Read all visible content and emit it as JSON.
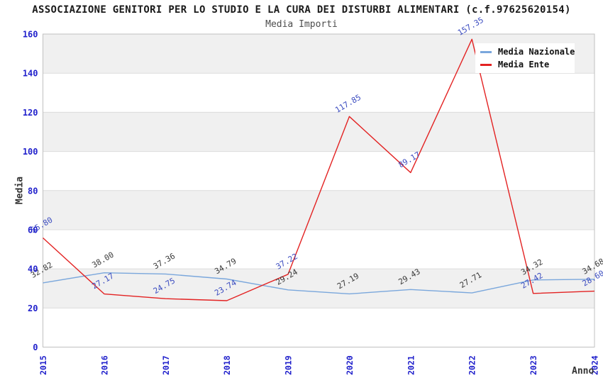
{
  "chart_data": {
    "type": "line",
    "title": "ASSOCIAZIONE GENITORI PER LO STUDIO E LA CURA DEI DISTURBI ALIMENTARI (c.f.97625620154)",
    "subtitle": "Media Importi",
    "xlabel": "Anno",
    "ylabel": "Media",
    "x": [
      "2015",
      "2016",
      "2017",
      "2018",
      "2019",
      "2020",
      "2021",
      "2022",
      "2023",
      "2024"
    ],
    "series": [
      {
        "name": "Media Nazionale",
        "color": "#7aa7dc",
        "label_color": "#3a3a3a",
        "values": [
          32.82,
          38.0,
          37.36,
          34.79,
          29.24,
          27.19,
          29.43,
          27.71,
          34.32,
          34.68
        ]
      },
      {
        "name": "Media Ente",
        "color": "#e32222",
        "label_color": "#3b4cc0",
        "values": [
          55.8,
          27.17,
          24.75,
          23.74,
          37.22,
          117.85,
          89.17,
          157.35,
          27.42,
          28.6
        ]
      }
    ],
    "ylim": [
      0,
      160
    ],
    "yticks": [
      0,
      20,
      40,
      60,
      80,
      100,
      120,
      140,
      160
    ],
    "grid": true,
    "legend_position": "top-right",
    "colors": {
      "tick_label": "#2222cc",
      "band_gray": "#f0f0f0",
      "band_white": "#ffffff",
      "grid_line": "#dcdcdc",
      "plot_border": "#c0c0c0"
    }
  }
}
